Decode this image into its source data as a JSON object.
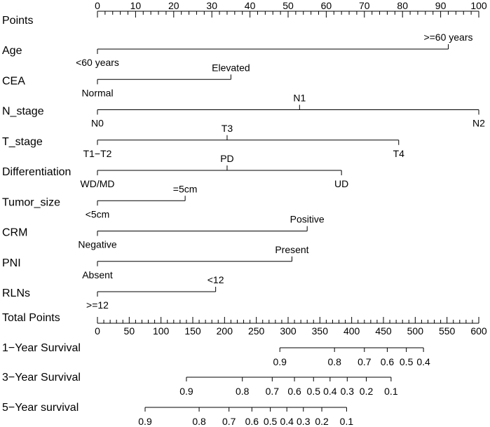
{
  "chart_data": {
    "type": "nomogram",
    "points_axis": {
      "label": "Points",
      "range": [
        0,
        100
      ],
      "major_ticks": [
        0,
        10,
        20,
        30,
        40,
        50,
        60,
        70,
        80,
        90,
        100
      ],
      "minor_step": 2
    },
    "variables": [
      {
        "name": "Age",
        "min_points": 0,
        "max_points": 92,
        "levels": [
          {
            "label": "<60 years",
            "points": 0,
            "side": "below"
          },
          {
            "label": ">=60 years",
            "points": 92,
            "side": "above"
          }
        ]
      },
      {
        "name": "CEA",
        "min_points": 0,
        "max_points": 35,
        "levels": [
          {
            "label": "Normal",
            "points": 0,
            "side": "below"
          },
          {
            "label": "Elevated",
            "points": 35,
            "side": "above"
          }
        ]
      },
      {
        "name": "N_stage",
        "min_points": 0,
        "max_points": 100,
        "levels": [
          {
            "label": "N0",
            "points": 0,
            "side": "below"
          },
          {
            "label": "N1",
            "points": 53,
            "side": "above"
          },
          {
            "label": "N2",
            "points": 100,
            "side": "below"
          }
        ]
      },
      {
        "name": "T_stage",
        "min_points": 0,
        "max_points": 79,
        "levels": [
          {
            "label": "T1−T2",
            "points": 0,
            "side": "below"
          },
          {
            "label": "T3",
            "points": 34,
            "side": "above"
          },
          {
            "label": "T4",
            "points": 79,
            "side": "below"
          }
        ]
      },
      {
        "name": "Differentiation",
        "min_points": 0,
        "max_points": 64,
        "levels": [
          {
            "label": "WD/MD",
            "points": 0,
            "side": "below"
          },
          {
            "label": "PD",
            "points": 34,
            "side": "above"
          },
          {
            "label": "UD",
            "points": 64,
            "side": "below"
          }
        ]
      },
      {
        "name": "Tumor_size",
        "min_points": 0,
        "max_points": 23,
        "levels": [
          {
            "label": "<5cm",
            "points": 0,
            "side": "below"
          },
          {
            "label": "=5cm",
            "points": 23,
            "side": "above"
          }
        ]
      },
      {
        "name": "CRM",
        "min_points": 0,
        "max_points": 55,
        "levels": [
          {
            "label": "Negative",
            "points": 0,
            "side": "below"
          },
          {
            "label": "Positive",
            "points": 55,
            "side": "above"
          }
        ]
      },
      {
        "name": "PNI",
        "min_points": 0,
        "max_points": 51,
        "levels": [
          {
            "label": "Absent",
            "points": 0,
            "side": "below"
          },
          {
            "label": "Present",
            "points": 51,
            "side": "above"
          }
        ]
      },
      {
        "name": "RLNs",
        "min_points": 0,
        "max_points": 31,
        "levels": [
          {
            "label": ">=12",
            "points": 0,
            "side": "below"
          },
          {
            "label": "<12",
            "points": 31,
            "side": "above"
          }
        ]
      }
    ],
    "total_points_axis": {
      "label": "Total Points",
      "range": [
        0,
        600
      ],
      "major_ticks": [
        0,
        50,
        100,
        150,
        200,
        250,
        300,
        350,
        400,
        450,
        500,
        550,
        600
      ],
      "minor_step": 10
    },
    "survival_axes": [
      {
        "name": "1−Year Survival",
        "ticks": [
          {
            "label": "0.9",
            "total_points": 287
          },
          {
            "label": "0.8",
            "total_points": 373
          },
          {
            "label": "0.7",
            "total_points": 420
          },
          {
            "label": "0.6",
            "total_points": 456
          },
          {
            "label": "0.5",
            "total_points": 486
          },
          {
            "label": "0.4",
            "total_points": 513
          }
        ]
      },
      {
        "name": "3−Year Survival",
        "ticks": [
          {
            "label": "0.9",
            "total_points": 140
          },
          {
            "label": "0.8",
            "total_points": 228
          },
          {
            "label": "0.7",
            "total_points": 275
          },
          {
            "label": "0.6",
            "total_points": 310
          },
          {
            "label": "0.5",
            "total_points": 340
          },
          {
            "label": "0.4",
            "total_points": 366
          },
          {
            "label": "0.3",
            "total_points": 393
          },
          {
            "label": "0.2",
            "total_points": 423
          },
          {
            "label": "0.1",
            "total_points": 462
          }
        ]
      },
      {
        "name": "5−Year survival",
        "ticks": [
          {
            "label": "0.9",
            "total_points": 75
          },
          {
            "label": "0.8",
            "total_points": 160
          },
          {
            "label": "0.7",
            "total_points": 207
          },
          {
            "label": "0.6",
            "total_points": 243
          },
          {
            "label": "0.5",
            "total_points": 272
          },
          {
            "label": "0.4",
            "total_points": 298
          },
          {
            "label": "0.3",
            "total_points": 324
          },
          {
            "label": "0.2",
            "total_points": 353
          },
          {
            "label": "0.1",
            "total_points": 392
          }
        ]
      }
    ]
  }
}
